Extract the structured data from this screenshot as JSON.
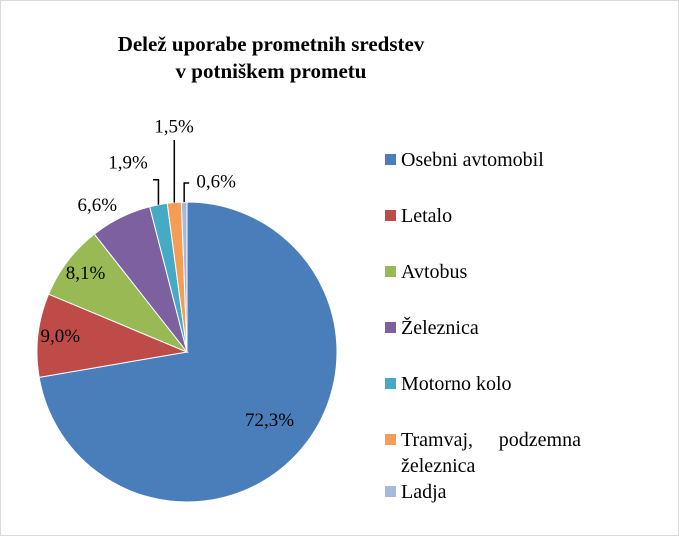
{
  "chart_data": {
    "type": "pie",
    "title": "Delež uporabe prometnih sredstev v potniškem prometu",
    "categories": [
      "Osebni avtomobil",
      "Letalo",
      "Avtobus",
      "Železnica",
      "Motorno kolo",
      "Tramvaj, podzemna železnica",
      "Ladja"
    ],
    "values": [
      72.3,
      9.0,
      8.1,
      6.6,
      1.9,
      1.5,
      0.6
    ],
    "value_labels": [
      "72,3%",
      "9,0%",
      "8,1%",
      "6,6%",
      "1,9%",
      "1,5%",
      "0,6%"
    ],
    "colors": [
      "#4a7ebb",
      "#be4b48",
      "#98b954",
      "#7d60a0",
      "#46aac5",
      "#f59d56",
      "#a5b8dd"
    ],
    "legend": "right"
  }
}
